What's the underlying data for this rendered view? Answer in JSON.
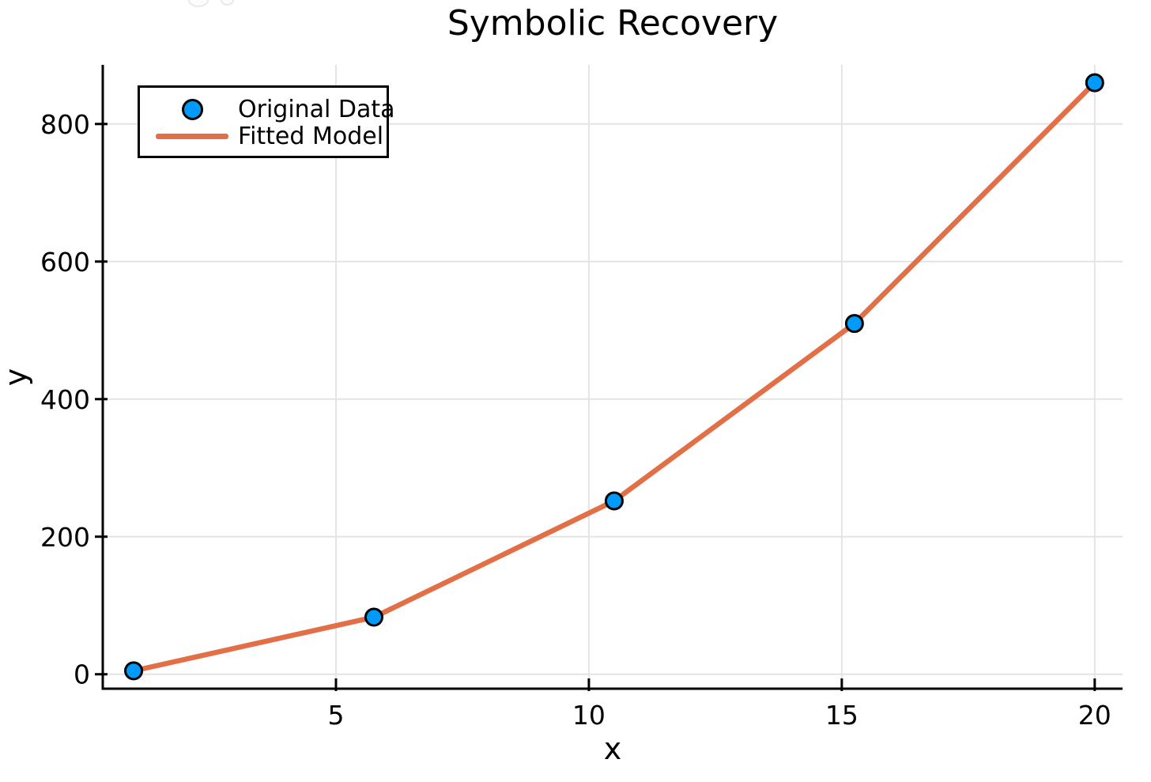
{
  "chart_data": {
    "type": "scatter",
    "title": "Symbolic Recovery",
    "xlabel": "x",
    "ylabel": "y",
    "xlim": [
      0.39,
      20.55
    ],
    "ylim": [
      -21,
      886
    ],
    "xticks": {
      "values": [
        5,
        10,
        15,
        20
      ],
      "labels": [
        "5",
        "10",
        "15",
        "20"
      ]
    },
    "yticks": {
      "values": [
        0,
        200,
        400,
        600,
        800
      ],
      "labels": [
        "0",
        "200",
        "400",
        "600",
        "800"
      ]
    },
    "grid": true,
    "legend_position": "top-left",
    "x": [
      1.0,
      5.75,
      10.5,
      15.25,
      20.0
    ],
    "series": [
      {
        "name": "Original Data",
        "type": "scatter",
        "color": "#009AFA",
        "marker_stroke": "#000000",
        "values": [
          5,
          83,
          252,
          510,
          860
        ]
      },
      {
        "name": "Fitted Model",
        "type": "line",
        "color": "#E36F47",
        "values": [
          5,
          83,
          252,
          510,
          860
        ]
      }
    ],
    "colors": {
      "grid": "#E4E4E4",
      "axis": "#000000",
      "background": "#FFFFFF"
    }
  }
}
